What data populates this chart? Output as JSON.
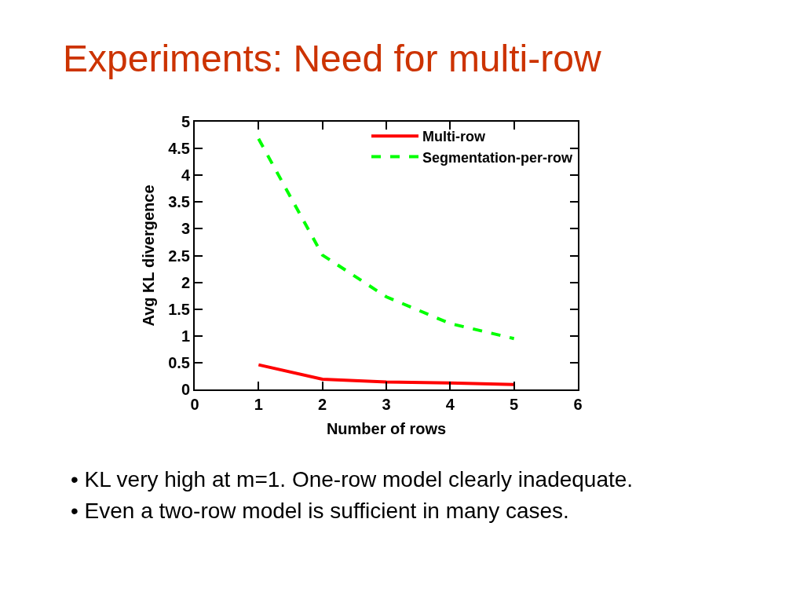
{
  "chart_data": {
    "type": "line",
    "title": "Experiments: Need for multi-row",
    "xlabel": "Number of rows",
    "ylabel": "Avg KL divergence",
    "x": [
      1,
      2,
      3,
      4,
      5
    ],
    "series": [
      {
        "name": "Multi-row",
        "color": "#ff0000",
        "line_style": "solid",
        "values": [
          0.46,
          0.19,
          0.14,
          0.12,
          0.09
        ]
      },
      {
        "name": "Segmentation-per-row",
        "color": "#00ff00",
        "line_style": "dashed",
        "values": [
          4.68,
          2.51,
          1.73,
          1.23,
          0.95
        ]
      }
    ],
    "xlim": [
      0,
      6
    ],
    "xticks": [
      0,
      1,
      2,
      3,
      4,
      5,
      6
    ],
    "ylim": [
      0,
      5
    ],
    "yticks": [
      0,
      0.5,
      1,
      1.5,
      2,
      2.5,
      3,
      3.5,
      4,
      4.5,
      5
    ],
    "legend": "top right",
    "annotations": [
      "• KL very high at m=1. One-row model clearly inadequate.",
      "• Even a two-row model is sufficient in many cases."
    ]
  }
}
